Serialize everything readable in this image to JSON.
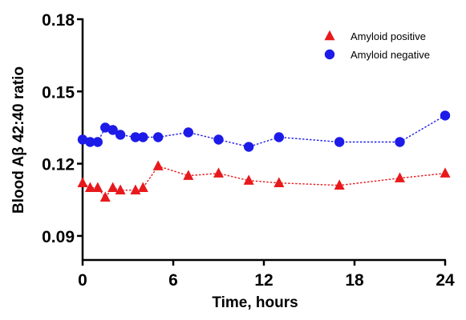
{
  "chart_data": {
    "type": "line",
    "xlabel": "Time, hours",
    "ylabel": "Blood Aβ 42:40 ratio",
    "xlim": [
      0,
      24
    ],
    "ylim": [
      0.08,
      0.18
    ],
    "x_ticks": [
      "0",
      "6",
      "12",
      "18",
      "24"
    ],
    "y_ticks": [
      "0.09",
      "0.12",
      "0.15",
      "0.18"
    ],
    "x_tick_values": [
      0,
      6,
      12,
      18,
      24
    ],
    "y_tick_values": [
      0.09,
      0.12,
      0.15,
      0.18
    ],
    "grid": false,
    "legend_position": "top-right",
    "series": [
      {
        "name": "Amyloid positive",
        "marker": "triangle",
        "color": "#e8191c",
        "x": [
          0,
          0.5,
          1,
          1.5,
          2,
          2.5,
          3.5,
          4,
          5,
          7,
          9,
          11,
          13,
          17,
          21,
          24
        ],
        "y": [
          0.112,
          0.11,
          0.11,
          0.106,
          0.11,
          0.109,
          0.109,
          0.11,
          0.119,
          0.115,
          0.116,
          0.113,
          0.112,
          0.111,
          0.114,
          0.116
        ]
      },
      {
        "name": "Amyloid negative",
        "marker": "circle",
        "color": "#1d1be8",
        "x": [
          0,
          0.5,
          1,
          1.5,
          2,
          2.5,
          3.5,
          4,
          5,
          7,
          9,
          11,
          13,
          17,
          21,
          24
        ],
        "y": [
          0.13,
          0.129,
          0.129,
          0.135,
          0.134,
          0.132,
          0.131,
          0.131,
          0.131,
          0.133,
          0.13,
          0.127,
          0.131,
          0.129,
          0.129,
          0.14
        ]
      }
    ]
  }
}
